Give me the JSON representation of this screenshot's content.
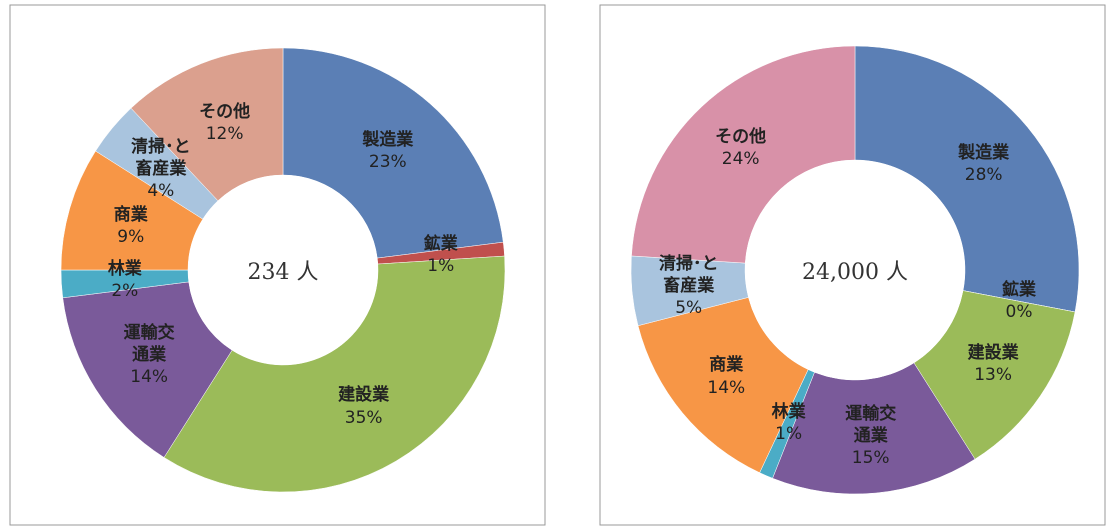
{
  "chart_data": [
    {
      "type": "donut",
      "center_label": "234 人",
      "categories": [
        "製造業",
        "鉱業",
        "建設業",
        "運輸交\n通業",
        "林業",
        "商業",
        "清掃･と\n畜産業",
        "その他"
      ],
      "values": [
        23,
        1,
        35,
        14,
        2,
        9,
        4,
        12
      ],
      "value_labels": [
        "23%",
        "1%",
        "35%",
        "14%",
        "2%",
        "9%",
        "4%",
        "12%"
      ],
      "colors": [
        "#5b7fb5",
        "#c0504d",
        "#9bbb59",
        "#7a5a9a",
        "#4bacc6",
        "#f79646",
        "#a9c4de",
        "#dba08e"
      ]
    },
    {
      "type": "donut",
      "center_label": "24,000 人",
      "categories": [
        "製造業",
        "鉱業",
        "建設業",
        "運輸交\n通業",
        "林業",
        "商業",
        "清掃･と\n畜産業",
        "その他"
      ],
      "values": [
        28,
        0,
        13,
        15,
        1,
        14,
        5,
        24
      ],
      "value_labels": [
        "28%",
        "0%",
        "13%",
        "15%",
        "1%",
        "14%",
        "5%",
        "24%"
      ],
      "colors": [
        "#5b7fb5",
        "#c0504d",
        "#9bbb59",
        "#7a5a9a",
        "#4bacc6",
        "#f79646",
        "#a9c4de",
        "#d891a8"
      ]
    }
  ]
}
